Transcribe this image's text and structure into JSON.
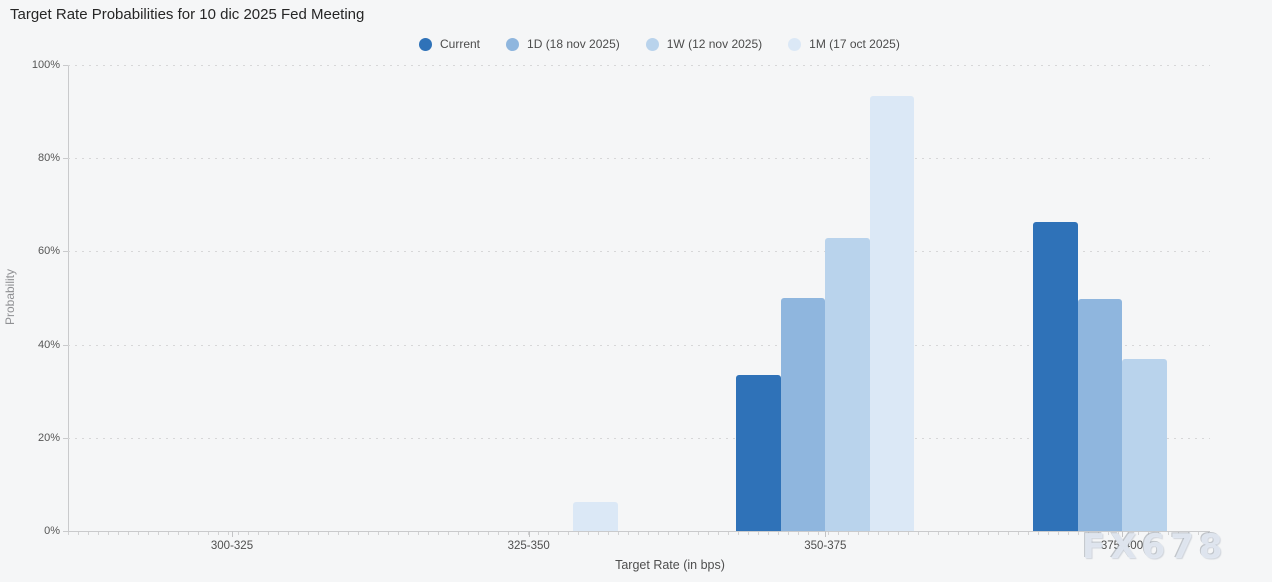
{
  "title": "Target Rate Probabilities for 10 dic 2025 Fed Meeting",
  "watermark": "FX678",
  "legend": [
    {
      "label": "Current",
      "color": "#2f72b8"
    },
    {
      "label": "1D (18 nov 2025)",
      "color": "#8fb6de"
    },
    {
      "label": "1W (12 nov 2025)",
      "color": "#b9d3ec"
    },
    {
      "label": "1M (17 oct 2025)",
      "color": "#dbe8f6"
    }
  ],
  "chart_data": {
    "type": "bar",
    "title": "Target Rate Probabilities for 10 dic 2025 Fed Meeting",
    "categories": [
      "300-325",
      "325-350",
      "350-375",
      "375-400"
    ],
    "series": [
      {
        "name": "Current",
        "color": "#2f72b8",
        "values": [
          0,
          0,
          33.5,
          66.4
        ]
      },
      {
        "name": "1D (18 nov 2025)",
        "color": "#8fb6de",
        "values": [
          0,
          0,
          50.1,
          49.8
        ]
      },
      {
        "name": "1W (12 nov 2025)",
        "color": "#b9d3ec",
        "values": [
          0,
          0,
          62.8,
          37.0
        ]
      },
      {
        "name": "1M (17 oct 2025)",
        "color": "#dbe8f6",
        "values": [
          0,
          6.3,
          93.4,
          0
        ]
      }
    ],
    "xlabel": "Target Rate (in bps)",
    "ylabel": "Probability",
    "ylim": [
      0,
      100
    ],
    "yticks": [
      "0%",
      "20%",
      "40%",
      "60%",
      "80%",
      "100%"
    ],
    "grid": "horizontal-dotted",
    "legend_position": "top"
  }
}
